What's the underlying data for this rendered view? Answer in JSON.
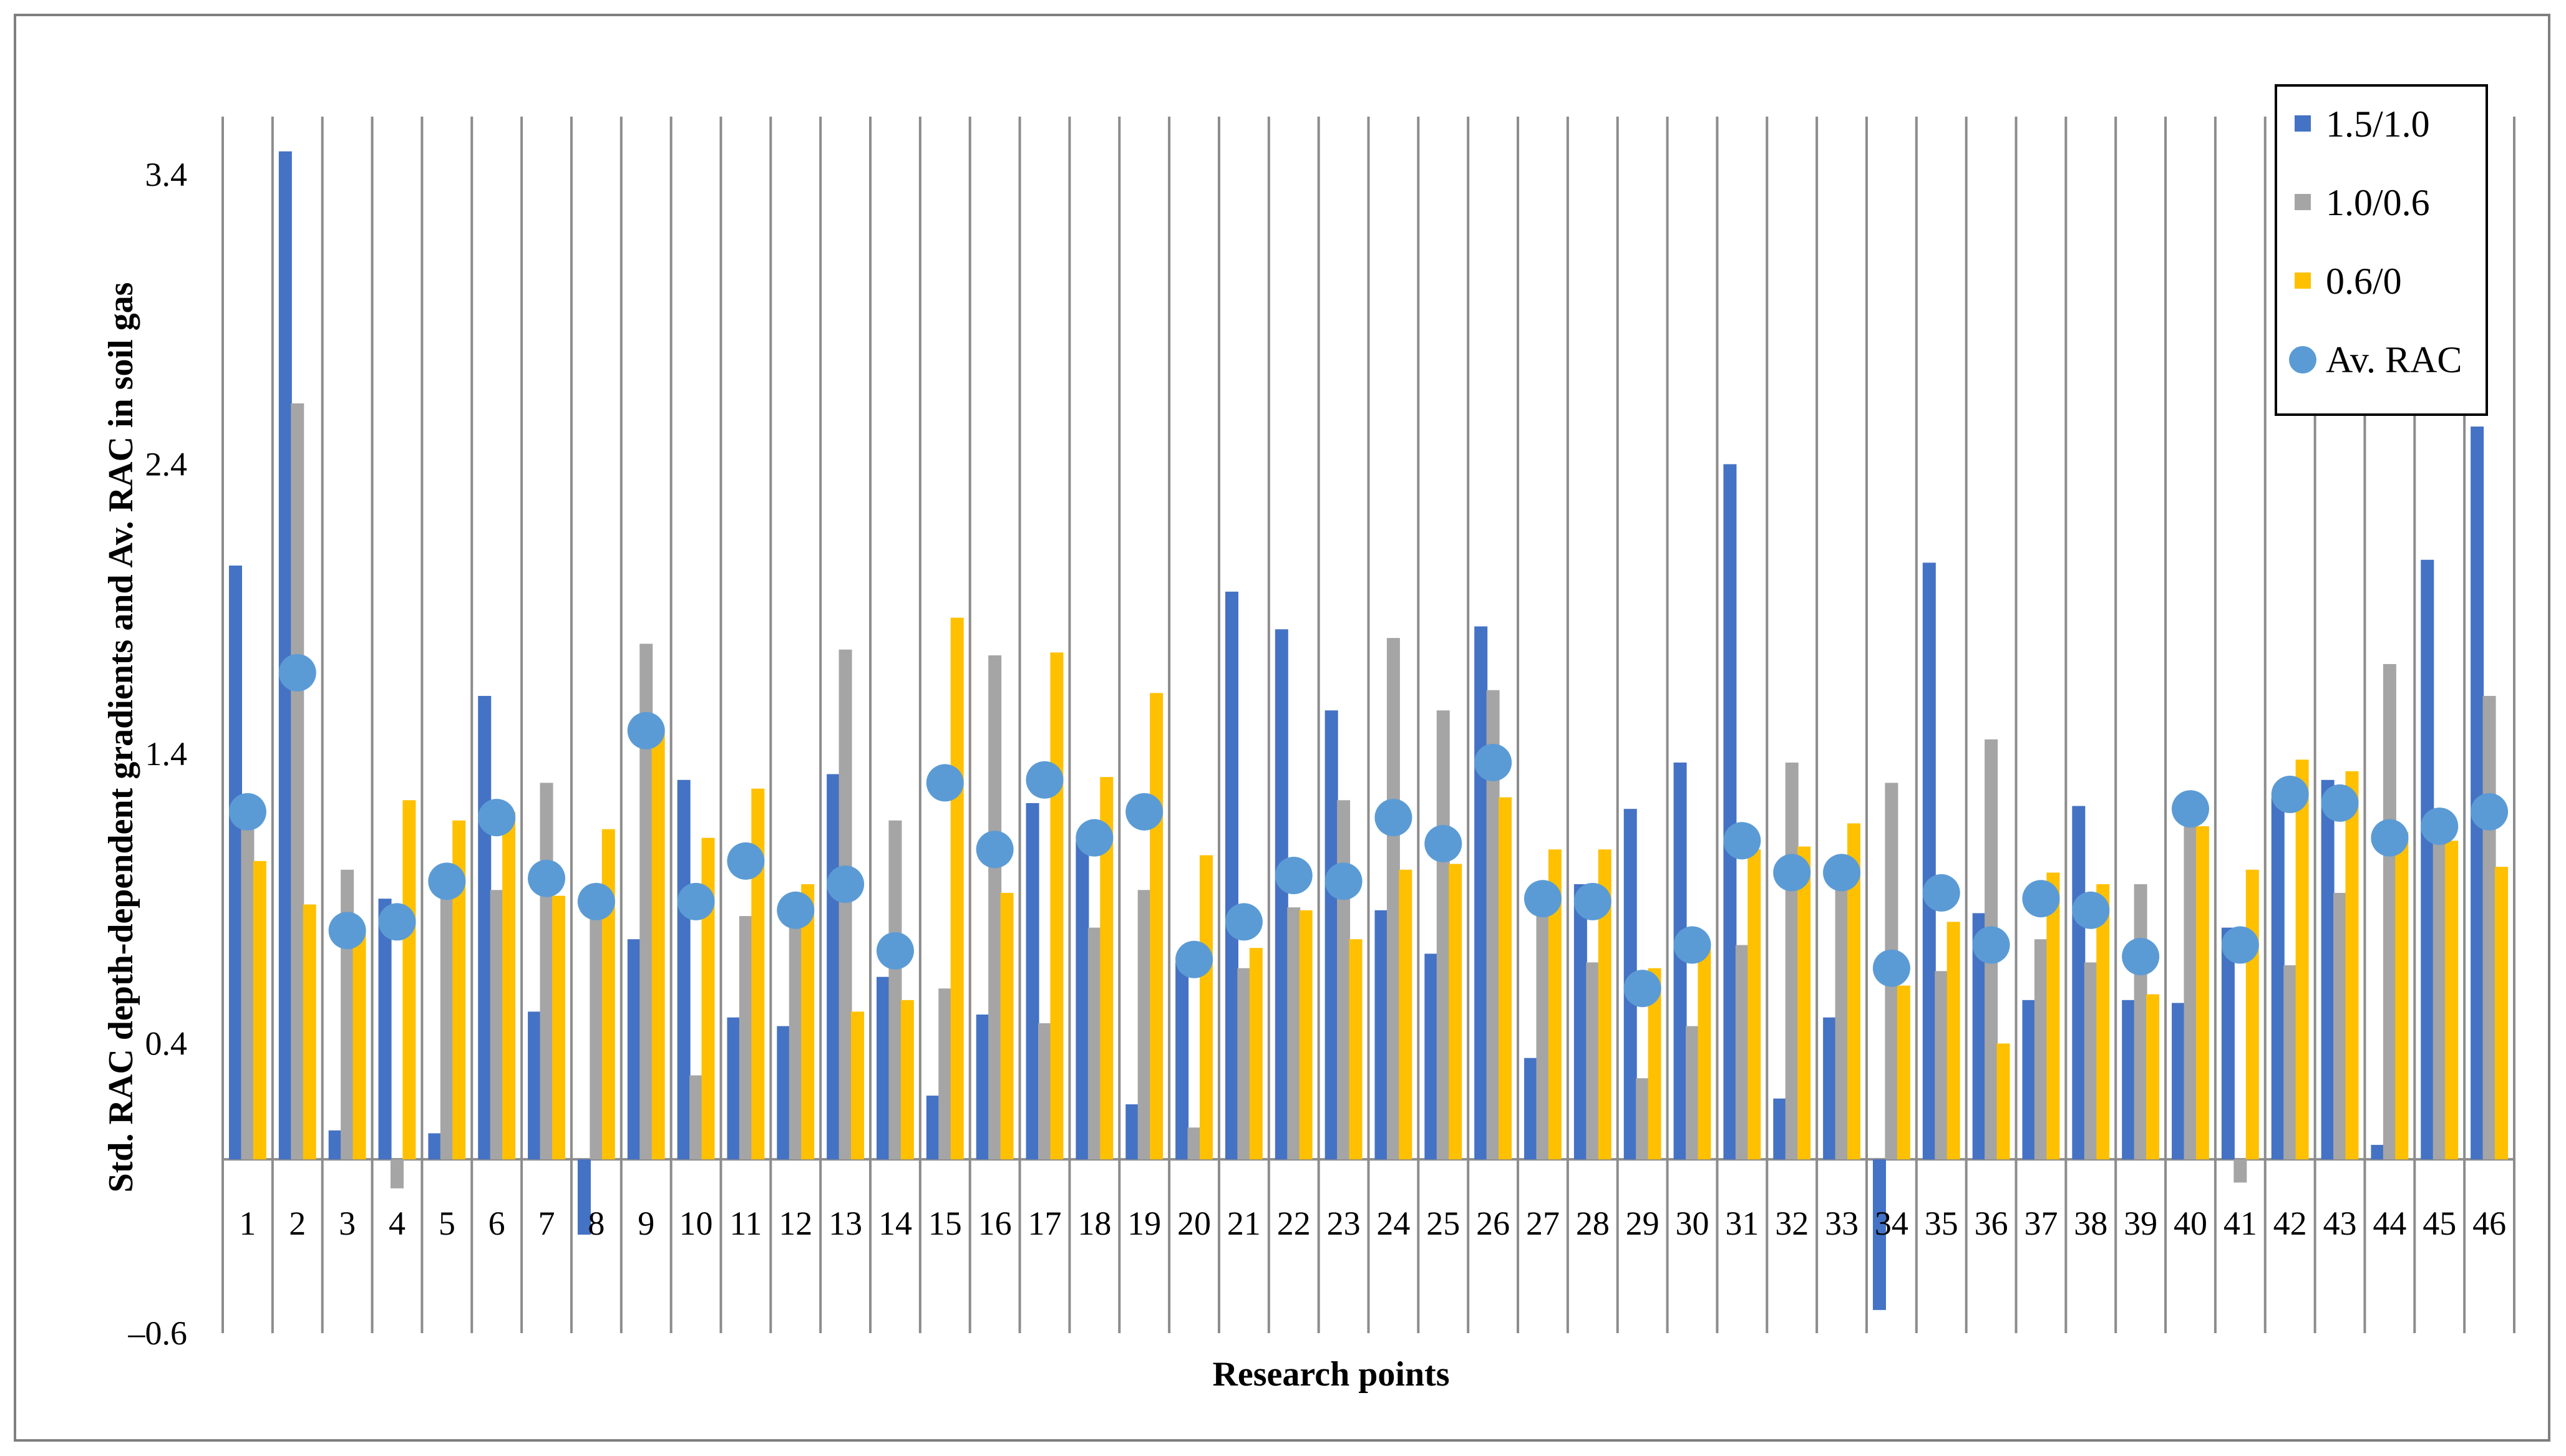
{
  "chart_data": {
    "type": "bar",
    "xlabel": "Research points",
    "ylabel": "Std. RAC depth-dependent gradients and Av. RAC in soil gas",
    "ylim": [
      -0.6,
      3.6
    ],
    "yticks": [
      "3.4",
      "2.4",
      "1.4",
      "0.4",
      "–0.6"
    ],
    "ytick_values": [
      3.4,
      2.4,
      1.4,
      0.4,
      -0.6
    ],
    "grid": "vertical category dividers",
    "legend_position": "top-right",
    "categories": [
      "1",
      "2",
      "3",
      "4",
      "5",
      "6",
      "7",
      "8",
      "9",
      "10",
      "11",
      "12",
      "13",
      "14",
      "15",
      "16",
      "17",
      "18",
      "19",
      "20",
      "21",
      "22",
      "23",
      "24",
      "25",
      "26",
      "27",
      "28",
      "29",
      "30",
      "31",
      "32",
      "33",
      "34",
      "35",
      "36",
      "37",
      "38",
      "39",
      "40",
      "41",
      "42",
      "43",
      "44",
      "45",
      "46"
    ],
    "series": [
      {
        "name": "1.5/1.0",
        "kind": "bar",
        "color": "#4472C4",
        "values": [
          2.05,
          3.48,
          0.1,
          0.9,
          0.09,
          1.6,
          0.51,
          -0.26,
          0.76,
          1.31,
          0.49,
          0.46,
          1.33,
          0.63,
          0.22,
          0.5,
          1.23,
          1.1,
          0.19,
          0.68,
          1.96,
          1.83,
          1.55,
          0.86,
          0.71,
          1.84,
          0.35,
          0.95,
          1.21,
          1.37,
          2.4,
          0.21,
          0.49,
          -0.52,
          2.06,
          0.85,
          0.55,
          1.22,
          0.55,
          0.54,
          0.8,
          1.25,
          1.31,
          0.05,
          2.07,
          2.53
        ]
      },
      {
        "name": "1.0/0.6",
        "kind": "bar",
        "color": "#A5A5A5",
        "values": [
          1.15,
          2.61,
          1.0,
          -0.1,
          0.92,
          0.93,
          1.3,
          0.9,
          1.78,
          0.29,
          0.84,
          0.91,
          1.76,
          1.17,
          0.59,
          1.74,
          0.47,
          0.8,
          0.93,
          0.11,
          0.66,
          0.87,
          1.24,
          1.8,
          1.55,
          1.62,
          0.9,
          0.68,
          0.28,
          0.46,
          0.74,
          1.37,
          0.98,
          1.3,
          0.65,
          1.45,
          0.76,
          0.68,
          0.95,
          1.2,
          -0.08,
          0.67,
          0.92,
          1.71,
          1.15,
          1.6
        ]
      },
      {
        "name": "0.6/0",
        "kind": "bar",
        "color": "#FFC000",
        "values": [
          1.03,
          0.88,
          0.78,
          1.24,
          1.17,
          1.2,
          0.91,
          1.14,
          1.49,
          1.11,
          1.28,
          0.95,
          0.51,
          0.55,
          1.87,
          0.92,
          1.75,
          1.32,
          1.61,
          1.05,
          0.73,
          0.86,
          0.76,
          1.0,
          1.02,
          1.25,
          1.07,
          1.07,
          0.66,
          0.73,
          1.07,
          1.08,
          1.16,
          0.6,
          0.82,
          0.4,
          0.99,
          0.95,
          0.57,
          1.15,
          1.0,
          1.38,
          1.34,
          1.13,
          1.1,
          1.01
        ]
      },
      {
        "name": "Av. RAC",
        "kind": "marker",
        "color": "#5B9BD5",
        "values": [
          1.2,
          1.68,
          0.79,
          0.82,
          0.96,
          1.18,
          0.97,
          0.89,
          1.48,
          0.89,
          1.03,
          0.86,
          0.95,
          0.72,
          1.3,
          1.07,
          1.31,
          1.11,
          1.2,
          0.69,
          0.82,
          0.98,
          0.96,
          1.18,
          1.09,
          1.37,
          0.9,
          0.89,
          0.59,
          0.74,
          1.1,
          0.99,
          0.99,
          0.66,
          0.92,
          0.74,
          0.9,
          0.86,
          0.7,
          1.21,
          0.74,
          1.26,
          1.23,
          1.11,
          1.15,
          1.2
        ]
      }
    ]
  }
}
